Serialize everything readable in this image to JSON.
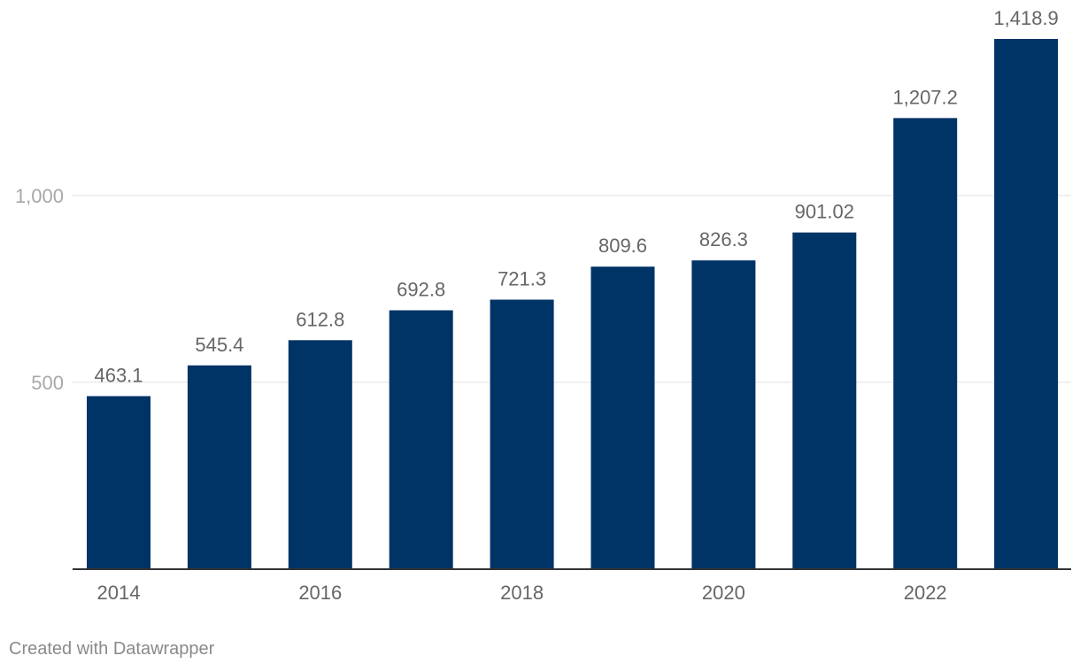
{
  "chart_data": {
    "type": "bar",
    "categories": [
      "2014",
      "2015",
      "2016",
      "2017",
      "2018",
      "2019",
      "2020",
      "2021",
      "2022",
      "2023"
    ],
    "values": [
      463.1,
      545.4,
      612.8,
      692.8,
      721.3,
      809.6,
      826.3,
      901.02,
      1207.2,
      1418.9
    ],
    "data_labels": [
      "463.1",
      "545.4",
      "612.8",
      "692.8",
      "721.3",
      "809.6",
      "826.3",
      "901.02",
      "1,207.2",
      "1,418.9"
    ],
    "x_tick_labels": [
      "2014",
      "",
      "2016",
      "",
      "2018",
      "",
      "2020",
      "",
      "2022",
      ""
    ],
    "y_ticks": [
      500,
      1000
    ],
    "y_tick_labels": [
      "500",
      "1,000"
    ],
    "ylim": [
      0,
      1418.9
    ],
    "grid": true,
    "bar_color": "#003366",
    "title": "",
    "xlabel": "",
    "ylabel": ""
  },
  "credit": "Created with Datawrapper"
}
